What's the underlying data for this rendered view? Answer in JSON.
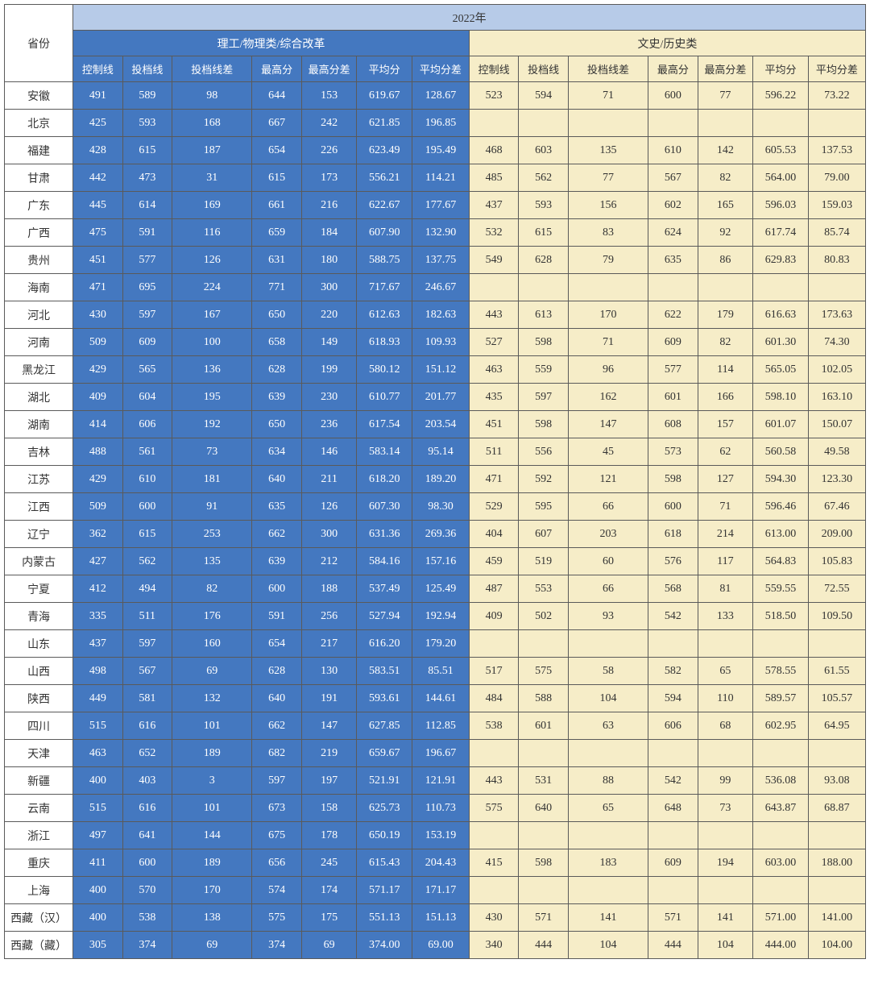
{
  "table": {
    "year": "2022年",
    "province_header": "省份",
    "science_header": "理工/物理类/综合改革",
    "liberal_header": "文史/历史类",
    "sub_headers": [
      "控制线",
      "投档线",
      "投档线差",
      "最高分",
      "最高分差",
      "平均分",
      "平均分差"
    ],
    "colors": {
      "year_bg": "#b7cbe8",
      "science_bg": "#4478c0",
      "science_text": "#ffffff",
      "liberal_bg": "#f6edc8",
      "liberal_text": "#333333",
      "border": "#5a5a5a"
    },
    "rows": [
      {
        "prov": "安徽",
        "s": [
          "491",
          "589",
          "98",
          "644",
          "153",
          "619.67",
          "128.67"
        ],
        "l": [
          "523",
          "594",
          "71",
          "600",
          "77",
          "596.22",
          "73.22"
        ]
      },
      {
        "prov": "北京",
        "s": [
          "425",
          "593",
          "168",
          "667",
          "242",
          "621.85",
          "196.85"
        ],
        "l": [
          "",
          "",
          "",
          "",
          "",
          "",
          ""
        ]
      },
      {
        "prov": "福建",
        "s": [
          "428",
          "615",
          "187",
          "654",
          "226",
          "623.49",
          "195.49"
        ],
        "l": [
          "468",
          "603",
          "135",
          "610",
          "142",
          "605.53",
          "137.53"
        ]
      },
      {
        "prov": "甘肃",
        "s": [
          "442",
          "473",
          "31",
          "615",
          "173",
          "556.21",
          "114.21"
        ],
        "l": [
          "485",
          "562",
          "77",
          "567",
          "82",
          "564.00",
          "79.00"
        ]
      },
      {
        "prov": "广东",
        "s": [
          "445",
          "614",
          "169",
          "661",
          "216",
          "622.67",
          "177.67"
        ],
        "l": [
          "437",
          "593",
          "156",
          "602",
          "165",
          "596.03",
          "159.03"
        ]
      },
      {
        "prov": "广西",
        "s": [
          "475",
          "591",
          "116",
          "659",
          "184",
          "607.90",
          "132.90"
        ],
        "l": [
          "532",
          "615",
          "83",
          "624",
          "92",
          "617.74",
          "85.74"
        ]
      },
      {
        "prov": "贵州",
        "s": [
          "451",
          "577",
          "126",
          "631",
          "180",
          "588.75",
          "137.75"
        ],
        "l": [
          "549",
          "628",
          "79",
          "635",
          "86",
          "629.83",
          "80.83"
        ]
      },
      {
        "prov": "海南",
        "s": [
          "471",
          "695",
          "224",
          "771",
          "300",
          "717.67",
          "246.67"
        ],
        "l": [
          "",
          "",
          "",
          "",
          "",
          "",
          ""
        ]
      },
      {
        "prov": "河北",
        "s": [
          "430",
          "597",
          "167",
          "650",
          "220",
          "612.63",
          "182.63"
        ],
        "l": [
          "443",
          "613",
          "170",
          "622",
          "179",
          "616.63",
          "173.63"
        ]
      },
      {
        "prov": "河南",
        "s": [
          "509",
          "609",
          "100",
          "658",
          "149",
          "618.93",
          "109.93"
        ],
        "l": [
          "527",
          "598",
          "71",
          "609",
          "82",
          "601.30",
          "74.30"
        ]
      },
      {
        "prov": "黑龙江",
        "s": [
          "429",
          "565",
          "136",
          "628",
          "199",
          "580.12",
          "151.12"
        ],
        "l": [
          "463",
          "559",
          "96",
          "577",
          "114",
          "565.05",
          "102.05"
        ]
      },
      {
        "prov": "湖北",
        "s": [
          "409",
          "604",
          "195",
          "639",
          "230",
          "610.77",
          "201.77"
        ],
        "l": [
          "435",
          "597",
          "162",
          "601",
          "166",
          "598.10",
          "163.10"
        ]
      },
      {
        "prov": "湖南",
        "s": [
          "414",
          "606",
          "192",
          "650",
          "236",
          "617.54",
          "203.54"
        ],
        "l": [
          "451",
          "598",
          "147",
          "608",
          "157",
          "601.07",
          "150.07"
        ]
      },
      {
        "prov": "吉林",
        "s": [
          "488",
          "561",
          "73",
          "634",
          "146",
          "583.14",
          "95.14"
        ],
        "l": [
          "511",
          "556",
          "45",
          "573",
          "62",
          "560.58",
          "49.58"
        ]
      },
      {
        "prov": "江苏",
        "s": [
          "429",
          "610",
          "181",
          "640",
          "211",
          "618.20",
          "189.20"
        ],
        "l": [
          "471",
          "592",
          "121",
          "598",
          "127",
          "594.30",
          "123.30"
        ]
      },
      {
        "prov": "江西",
        "s": [
          "509",
          "600",
          "91",
          "635",
          "126",
          "607.30",
          "98.30"
        ],
        "l": [
          "529",
          "595",
          "66",
          "600",
          "71",
          "596.46",
          "67.46"
        ]
      },
      {
        "prov": "辽宁",
        "s": [
          "362",
          "615",
          "253",
          "662",
          "300",
          "631.36",
          "269.36"
        ],
        "l": [
          "404",
          "607",
          "203",
          "618",
          "214",
          "613.00",
          "209.00"
        ]
      },
      {
        "prov": "内蒙古",
        "s": [
          "427",
          "562",
          "135",
          "639",
          "212",
          "584.16",
          "157.16"
        ],
        "l": [
          "459",
          "519",
          "60",
          "576",
          "117",
          "564.83",
          "105.83"
        ]
      },
      {
        "prov": "宁夏",
        "s": [
          "412",
          "494",
          "82",
          "600",
          "188",
          "537.49",
          "125.49"
        ],
        "l": [
          "487",
          "553",
          "66",
          "568",
          "81",
          "559.55",
          "72.55"
        ]
      },
      {
        "prov": "青海",
        "s": [
          "335",
          "511",
          "176",
          "591",
          "256",
          "527.94",
          "192.94"
        ],
        "l": [
          "409",
          "502",
          "93",
          "542",
          "133",
          "518.50",
          "109.50"
        ]
      },
      {
        "prov": "山东",
        "s": [
          "437",
          "597",
          "160",
          "654",
          "217",
          "616.20",
          "179.20"
        ],
        "l": [
          "",
          "",
          "",
          "",
          "",
          "",
          ""
        ]
      },
      {
        "prov": "山西",
        "s": [
          "498",
          "567",
          "69",
          "628",
          "130",
          "583.51",
          "85.51"
        ],
        "l": [
          "517",
          "575",
          "58",
          "582",
          "65",
          "578.55",
          "61.55"
        ]
      },
      {
        "prov": "陕西",
        "s": [
          "449",
          "581",
          "132",
          "640",
          "191",
          "593.61",
          "144.61"
        ],
        "l": [
          "484",
          "588",
          "104",
          "594",
          "110",
          "589.57",
          "105.57"
        ]
      },
      {
        "prov": "四川",
        "s": [
          "515",
          "616",
          "101",
          "662",
          "147",
          "627.85",
          "112.85"
        ],
        "l": [
          "538",
          "601",
          "63",
          "606",
          "68",
          "602.95",
          "64.95"
        ]
      },
      {
        "prov": "天津",
        "s": [
          "463",
          "652",
          "189",
          "682",
          "219",
          "659.67",
          "196.67"
        ],
        "l": [
          "",
          "",
          "",
          "",
          "",
          "",
          ""
        ]
      },
      {
        "prov": "新疆",
        "s": [
          "400",
          "403",
          "3",
          "597",
          "197",
          "521.91",
          "121.91"
        ],
        "l": [
          "443",
          "531",
          "88",
          "542",
          "99",
          "536.08",
          "93.08"
        ]
      },
      {
        "prov": "云南",
        "s": [
          "515",
          "616",
          "101",
          "673",
          "158",
          "625.73",
          "110.73"
        ],
        "l": [
          "575",
          "640",
          "65",
          "648",
          "73",
          "643.87",
          "68.87"
        ]
      },
      {
        "prov": "浙江",
        "s": [
          "497",
          "641",
          "144",
          "675",
          "178",
          "650.19",
          "153.19"
        ],
        "l": [
          "",
          "",
          "",
          "",
          "",
          "",
          ""
        ]
      },
      {
        "prov": "重庆",
        "s": [
          "411",
          "600",
          "189",
          "656",
          "245",
          "615.43",
          "204.43"
        ],
        "l": [
          "415",
          "598",
          "183",
          "609",
          "194",
          "603.00",
          "188.00"
        ]
      },
      {
        "prov": "上海",
        "s": [
          "400",
          "570",
          "170",
          "574",
          "174",
          "571.17",
          "171.17"
        ],
        "l": [
          "",
          "",
          "",
          "",
          "",
          "",
          ""
        ]
      },
      {
        "prov": "西藏（汉）",
        "s": [
          "400",
          "538",
          "138",
          "575",
          "175",
          "551.13",
          "151.13"
        ],
        "l": [
          "430",
          "571",
          "141",
          "571",
          "141",
          "571.00",
          "141.00"
        ]
      },
      {
        "prov": "西藏（藏）",
        "s": [
          "305",
          "374",
          "69",
          "374",
          "69",
          "374.00",
          "69.00"
        ],
        "l": [
          "340",
          "444",
          "104",
          "444",
          "104",
          "444.00",
          "104.00"
        ]
      }
    ]
  }
}
